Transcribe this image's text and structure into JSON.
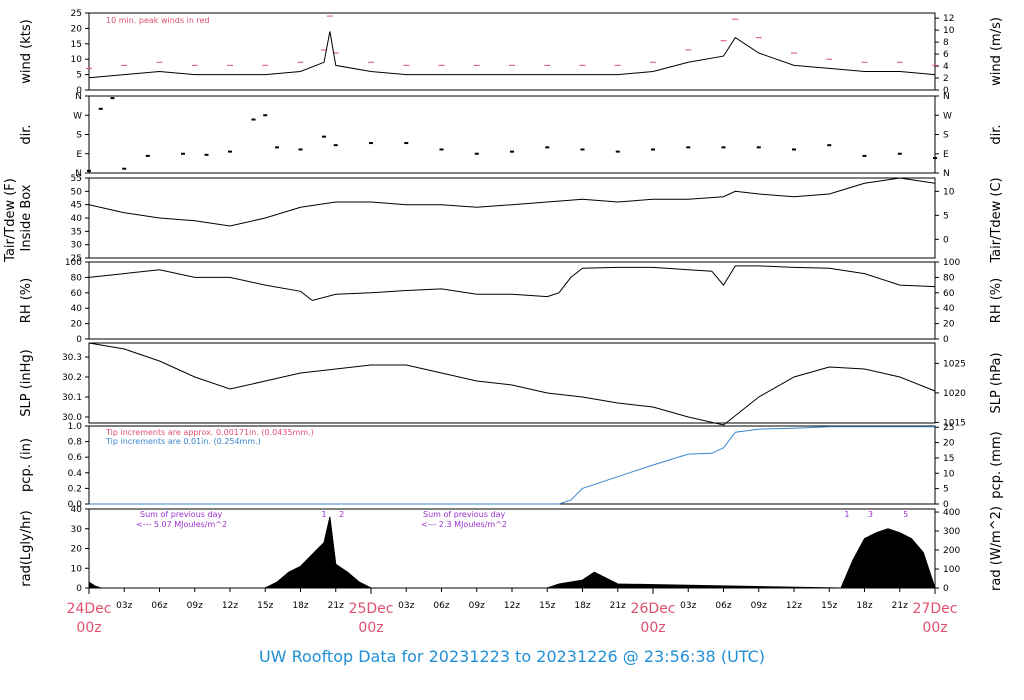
{
  "title": "UW Rooftop Data for 20231223  to  20231226 @ 23:56:38  (UTC)",
  "colors": {
    "red": "#e0506f",
    "blue": "#3a86d0",
    "purple": "#9b30d0",
    "black": "#000000"
  },
  "time_axis": {
    "hour_ticks": [
      "03z",
      "06z",
      "09z",
      "12z",
      "15z",
      "18z",
      "21z"
    ],
    "day_labels": [
      {
        "day": "24Dec",
        "hour": "00z"
      },
      {
        "day": "25Dec",
        "hour": "00z"
      },
      {
        "day": "26Dec",
        "hour": "00z"
      },
      {
        "day": "27Dec",
        "hour": "00z"
      }
    ]
  },
  "chart_data": [
    {
      "type": "line",
      "id": "wind",
      "ylabel": "wind (kts)",
      "ylabel_right": "wind (m/s)",
      "ylim": [
        0,
        25
      ],
      "yticks": [
        "0",
        "5",
        "10",
        "15",
        "20",
        "25"
      ],
      "yticks_right": [
        "0",
        "2",
        "4",
        "6",
        "8",
        "10",
        "12"
      ],
      "annotation": "10 min. peak winds in red",
      "x_hours": [
        0,
        3,
        6,
        9,
        12,
        15,
        18,
        20,
        20.5,
        21,
        24,
        27,
        30,
        33,
        36,
        39,
        42,
        45,
        48,
        51,
        54,
        55,
        57,
        60,
        63,
        66,
        69,
        72
      ],
      "values": [
        4,
        5,
        6,
        5,
        5,
        5,
        6,
        9,
        19,
        8,
        6,
        5,
        5,
        5,
        5,
        5,
        5,
        5,
        6,
        9,
        11,
        17,
        12,
        8,
        7,
        6,
        6,
        5
      ],
      "peak_values": [
        7,
        8,
        9,
        8,
        8,
        8,
        9,
        13,
        24,
        12,
        9,
        8,
        8,
        8,
        8,
        8,
        8,
        8,
        9,
        13,
        16,
        23,
        17,
        12,
        10,
        9,
        9,
        8
      ]
    },
    {
      "type": "scatter",
      "id": "dir",
      "ylabel": "dir.",
      "ylabel_right": "dir.",
      "yticks": [
        "N",
        "E",
        "S",
        "W",
        "N"
      ],
      "x_hours": [
        0,
        1,
        2,
        3,
        5,
        8,
        10,
        12,
        14,
        15,
        16,
        18,
        20,
        21,
        24,
        27,
        30,
        33,
        36,
        39,
        42,
        45,
        48,
        51,
        54,
        57,
        60,
        63,
        66,
        69,
        72
      ],
      "values": [
        10,
        300,
        350,
        20,
        80,
        90,
        85,
        100,
        250,
        270,
        120,
        110,
        170,
        130,
        140,
        140,
        110,
        90,
        100,
        120,
        110,
        100,
        110,
        120,
        120,
        120,
        110,
        130,
        80,
        90,
        70
      ]
    },
    {
      "type": "line",
      "id": "tair",
      "ylabel": "Tair/Tdew (F)",
      "ylabel2": "Inside Box",
      "ylabel_right": "Tair/Tdew (C)",
      "ylim": [
        25,
        55
      ],
      "yticks": [
        "25",
        "30",
        "35",
        "40",
        "45",
        "50",
        "55"
      ],
      "yticks_right": [
        "0",
        "5",
        "10"
      ],
      "x_hours": [
        0,
        3,
        6,
        9,
        12,
        15,
        18,
        21,
        24,
        27,
        30,
        33,
        36,
        39,
        42,
        45,
        48,
        51,
        54,
        55,
        57,
        60,
        63,
        66,
        69,
        72
      ],
      "values": [
        45,
        42,
        40,
        39,
        37,
        40,
        44,
        46,
        46,
        45,
        45,
        44,
        45,
        46,
        47,
        46,
        47,
        47,
        48,
        50,
        49,
        48,
        49,
        53,
        55,
        53
      ]
    },
    {
      "type": "line",
      "id": "rh",
      "ylabel": "RH (%)",
      "ylabel_right": "RH (%)",
      "ylim": [
        0,
        100
      ],
      "yticks": [
        "0",
        "20",
        "40",
        "60",
        "80",
        "100"
      ],
      "yticks_right": [
        "0",
        "20",
        "40",
        "60",
        "80",
        "100"
      ],
      "x_hours": [
        0,
        3,
        6,
        9,
        12,
        15,
        18,
        19,
        21,
        24,
        27,
        30,
        33,
        36,
        39,
        40,
        41,
        42,
        45,
        48,
        51,
        53,
        54,
        55,
        57,
        60,
        63,
        66,
        69,
        72
      ],
      "values": [
        80,
        85,
        90,
        80,
        80,
        70,
        62,
        50,
        58,
        60,
        63,
        65,
        58,
        58,
        55,
        60,
        80,
        92,
        93,
        93,
        90,
        88,
        70,
        95,
        95,
        93,
        92,
        85,
        70,
        68
      ]
    },
    {
      "type": "line",
      "id": "slp",
      "ylabel": "SLP (inHg)",
      "ylabel_right": "SLP (hPa)",
      "ylim": [
        29.97,
        30.37
      ],
      "yticks": [
        "30.0",
        "30.1",
        "30.2",
        "30.3"
      ],
      "yticks_right": [
        "1015",
        "1020",
        "1025"
      ],
      "x_hours": [
        0,
        3,
        6,
        9,
        12,
        15,
        18,
        21,
        24,
        27,
        30,
        33,
        36,
        39,
        42,
        45,
        48,
        51,
        54,
        57,
        60,
        63,
        66,
        69,
        72
      ],
      "values": [
        30.37,
        30.34,
        30.28,
        30.2,
        30.14,
        30.18,
        30.22,
        30.24,
        30.26,
        30.26,
        30.22,
        30.18,
        30.16,
        30.12,
        30.1,
        30.07,
        30.05,
        30.0,
        29.96,
        30.1,
        30.2,
        30.25,
        30.24,
        30.2,
        30.13
      ]
    },
    {
      "type": "line",
      "id": "pcp",
      "ylabel": "pcp. (in)",
      "ylabel_right": "pcp. (mm)",
      "ylim": [
        0,
        1.0
      ],
      "yticks": [
        "0.0",
        "0.2",
        "0.4",
        "0.6",
        "0.8",
        "1.0"
      ],
      "yticks_right": [
        "0",
        "5",
        "10",
        "15",
        "20",
        "25"
      ],
      "annotation_red": "Tip increments are approx. 0.00171in. (0.0435mm.)",
      "annotation_blue": "Tip increments are 0.01in. (0.254mm.)",
      "x_hours": [
        0,
        40,
        41,
        42,
        45,
        48,
        51,
        53,
        54,
        55,
        57,
        60,
        63,
        66,
        69,
        72
      ],
      "values": [
        0,
        0,
        0.05,
        0.2,
        0.35,
        0.5,
        0.64,
        0.65,
        0.72,
        0.92,
        0.96,
        0.97,
        0.99,
        0.99,
        0.99,
        0.99
      ]
    },
    {
      "type": "area",
      "id": "rad",
      "ylabel": "rad(Lgly/hr)",
      "ylabel_right": "rad (W/m^2)",
      "ylim": [
        0,
        40
      ],
      "yticks": [
        "0",
        "10",
        "20",
        "30",
        "40"
      ],
      "yticks_right": [
        "0",
        "100",
        "200",
        "300",
        "400"
      ],
      "note1_a": "Sum of previous day",
      "note1_b": "<--- 5.07 MJoules/m^2",
      "note2_a": "Sum of previous day",
      "note2_b": "<--- 2.3 MJoules/m^2",
      "markers": [
        "1",
        "2",
        "1",
        "3",
        "5"
      ],
      "x_hours": [
        0,
        0.5,
        1,
        15,
        16,
        17,
        18,
        19,
        20,
        20.5,
        21,
        22,
        23,
        24,
        39,
        40,
        42,
        43,
        44,
        45,
        64,
        65,
        66,
        67,
        68,
        69,
        70,
        71,
        72
      ],
      "values": [
        3,
        1,
        0,
        0,
        3,
        8,
        11,
        17,
        23,
        36,
        12,
        8,
        3,
        0,
        0,
        2,
        4,
        8,
        5,
        2,
        0,
        14,
        25,
        28,
        30,
        28,
        25,
        18,
        0
      ]
    }
  ]
}
